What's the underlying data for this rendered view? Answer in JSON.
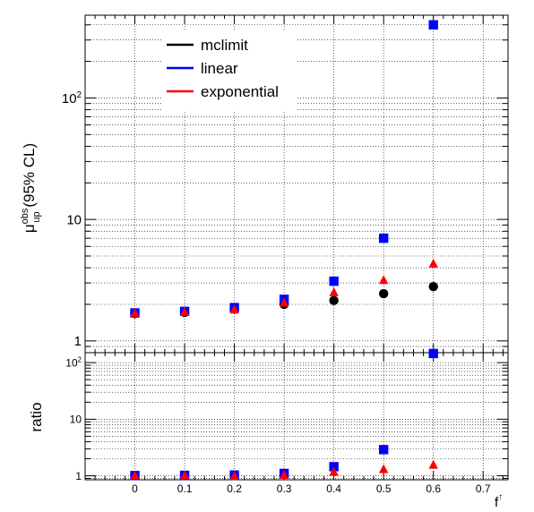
{
  "chart_data": [
    {
      "panel": "main",
      "type": "scatter",
      "ylabel": {
        "base": "μ",
        "sup": "obs",
        "sub": "up",
        "rest": " (95% CL)"
      },
      "yscale": "log",
      "ylim": [
        0.8,
        480
      ],
      "xlim": [
        -0.1,
        0.75
      ],
      "grid": true,
      "legend_position": "top-left",
      "yticks": [
        {
          "value": 1,
          "label": "1"
        },
        {
          "value": 10,
          "label": "10"
        },
        {
          "value": 100,
          "label": "10",
          "exp": "2"
        }
      ],
      "series": [
        {
          "name": "mclimit",
          "color": "#000000",
          "marker": "circle",
          "x": [
            0,
            0.1,
            0.2,
            0.3,
            0.4,
            0.5,
            0.6
          ],
          "y": [
            1.68,
            1.72,
            1.83,
            2.0,
            2.15,
            2.45,
            2.8
          ]
        },
        {
          "name": "linear",
          "color": "#0000ff",
          "marker": "square",
          "x": [
            0,
            0.1,
            0.2,
            0.3,
            0.4,
            0.5,
            0.6
          ],
          "y": [
            1.7,
            1.75,
            1.88,
            2.2,
            3.1,
            7.0,
            400
          ]
        },
        {
          "name": "exponential",
          "color": "#ff0000",
          "marker": "triangle",
          "x": [
            0,
            0.1,
            0.2,
            0.3,
            0.4,
            0.5,
            0.6
          ],
          "y": [
            1.68,
            1.72,
            1.8,
            2.05,
            2.5,
            3.15,
            4.3
          ]
        }
      ]
    },
    {
      "panel": "ratio",
      "type": "scatter",
      "xlabel": {
        "base": "f",
        "sup": "↑"
      },
      "ylabel": "ratio",
      "yscale": "log",
      "ylim": [
        0.85,
        150
      ],
      "xlim": [
        -0.1,
        0.75
      ],
      "grid": true,
      "xticks": [
        {
          "value": 0,
          "label": "0"
        },
        {
          "value": 0.1,
          "label": "0.1"
        },
        {
          "value": 0.2,
          "label": "0.2"
        },
        {
          "value": 0.3,
          "label": "0.3"
        },
        {
          "value": 0.4,
          "label": "0.4"
        },
        {
          "value": 0.5,
          "label": "0.5"
        },
        {
          "value": 0.6,
          "label": "0.6"
        },
        {
          "value": 0.7,
          "label": "0.7"
        }
      ],
      "yticks": [
        {
          "value": 1,
          "label": "1"
        },
        {
          "value": 10,
          "label": "10"
        },
        {
          "value": 100,
          "label": "10",
          "exp": "2"
        }
      ],
      "series": [
        {
          "name": "linear",
          "color": "#0000ff",
          "marker": "square",
          "x": [
            0,
            0.1,
            0.2,
            0.3,
            0.4,
            0.5,
            0.6
          ],
          "y": [
            1.01,
            1.02,
            1.03,
            1.1,
            1.45,
            2.9,
            145
          ]
        },
        {
          "name": "exponential",
          "color": "#ff0000",
          "marker": "triangle",
          "x": [
            0,
            0.1,
            0.2,
            0.3,
            0.4,
            0.5,
            0.6
          ],
          "y": [
            1.0,
            1.0,
            0.98,
            1.02,
            1.16,
            1.29,
            1.54
          ]
        }
      ]
    }
  ]
}
